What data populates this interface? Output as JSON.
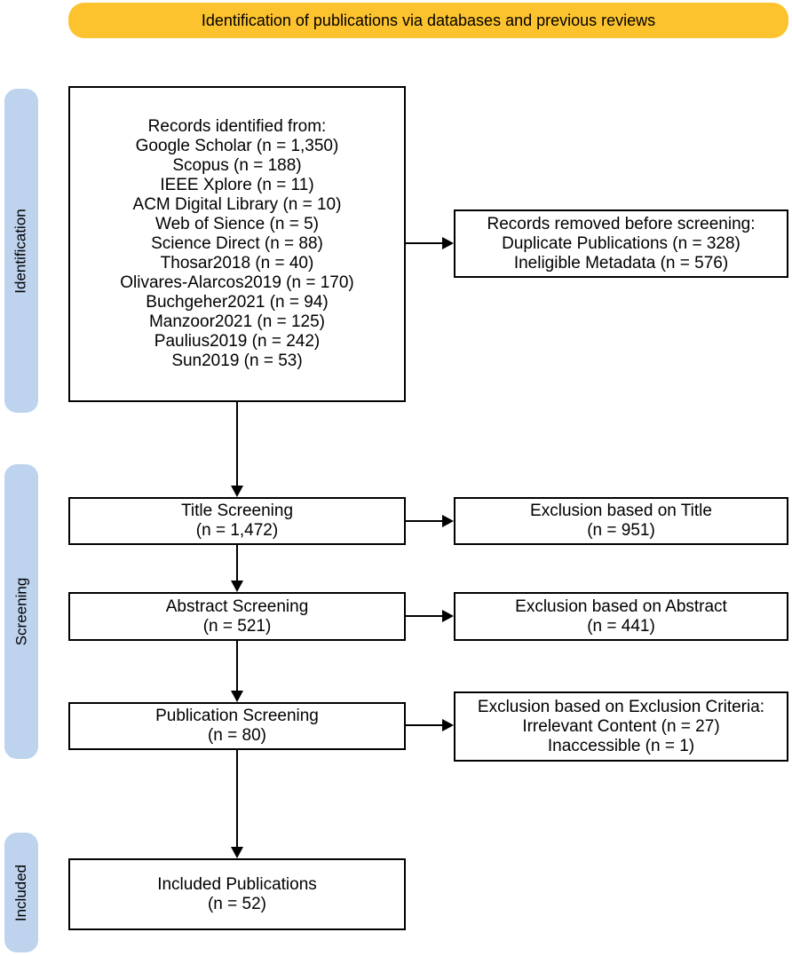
{
  "banner": {
    "label": "Identification of publications via databases and previous reviews",
    "bg_color": "#FDC32E"
  },
  "sidebar": {
    "bg_color": "#BDD3EE",
    "stages": [
      {
        "label": "Identification"
      },
      {
        "label": "Screening"
      },
      {
        "label": "Included"
      }
    ]
  },
  "boxes": {
    "records_identified": {
      "lines": [
        "Records identified from:",
        "Google Scholar (n = 1,350)",
        "Scopus (n = 188)",
        "IEEE Xplore (n = 11)",
        "ACM Digital Library (n = 10)",
        "Web of Sience (n = 5)",
        "Science Direct (n = 88)",
        "Thosar2018 (n = 40)",
        "Olivares-Alarcos2019 (n = 170)",
        "Buchgeher2021 (n = 94)",
        "Manzoor2021 (n = 125)",
        "Paulius2019 (n = 242)",
        "Sun2019 (n = 53)"
      ]
    },
    "records_removed": {
      "lines": [
        "Records removed before screening:",
        "Duplicate Publications (n = 328)",
        "Ineligible Metadata (n = 576)"
      ]
    },
    "title_screening": {
      "lines": [
        "Title Screening",
        "(n = 1,472)"
      ]
    },
    "exclusion_title": {
      "lines": [
        "Exclusion based on Title",
        "(n = 951)"
      ]
    },
    "abstract_screening": {
      "lines": [
        "Abstract Screening",
        "(n = 521)"
      ]
    },
    "exclusion_abstract": {
      "lines": [
        "Exclusion based on Abstract",
        "(n = 441)"
      ]
    },
    "publication_screening": {
      "lines": [
        "Publication Screening",
        "(n = 80)"
      ]
    },
    "exclusion_criteria": {
      "lines": [
        "Exclusion based on Exclusion Criteria:",
        "Irrelevant Content (n = 27)",
        "Inaccessible (n = 1)"
      ]
    },
    "included_publications": {
      "lines": [
        "Included Publications",
        "(n = 52)"
      ]
    }
  }
}
